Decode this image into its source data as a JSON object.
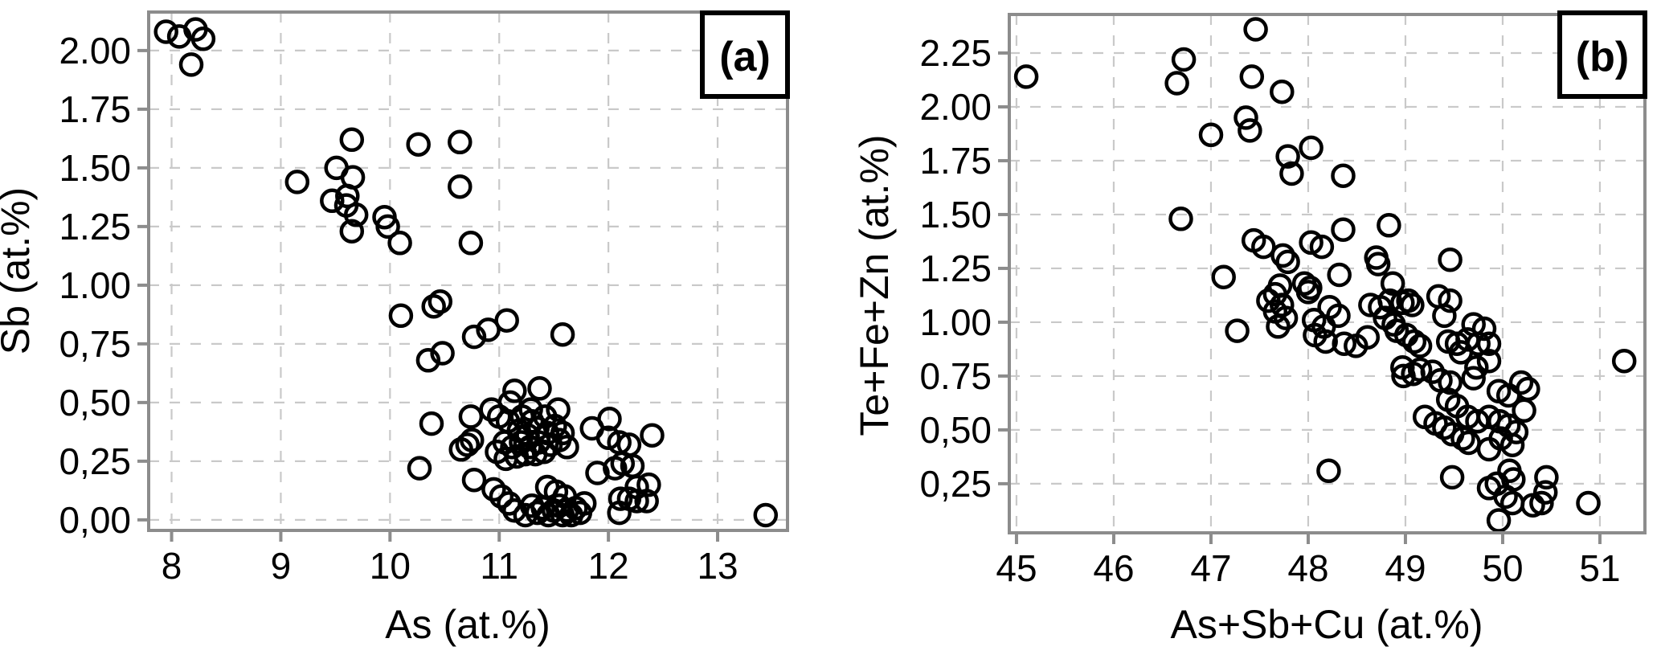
{
  "figure": {
    "background": "#ffffff",
    "axis_color": "#8c8c8c",
    "grid_color": "#c9c9c9",
    "text_color": "#000000",
    "marker": {
      "shape": "open-circle",
      "stroke": "#000000",
      "fill": "none"
    }
  },
  "chart_data": [
    {
      "type": "scatter",
      "panel_label": "(a)",
      "xlabel": "As (at.%)",
      "ylabel": "Sb (at.%)",
      "xlim": [
        7.79,
        13.64
      ],
      "ylim": [
        -0.045,
        2.164
      ],
      "grid": "dashed",
      "legend": "none",
      "xticks": {
        "values": [
          8,
          9,
          10,
          11,
          12,
          13
        ],
        "labels": [
          "8",
          "9",
          "10",
          "11",
          "12",
          "13"
        ]
      },
      "yticks": {
        "values": [
          0,
          0.25,
          0.5,
          0.75,
          1,
          1.25,
          1.5,
          1.75,
          2
        ],
        "labels": [
          "0,00",
          "0,25",
          "0,50",
          "0,75",
          "1.00",
          "1.25",
          "1.50",
          "1.75",
          "2.00"
        ]
      },
      "points": [
        [
          7.95,
          2.08
        ],
        [
          8.07,
          2.06
        ],
        [
          8.22,
          2.09
        ],
        [
          8.29,
          2.05
        ],
        [
          8.18,
          1.94
        ],
        [
          9.65,
          1.62
        ],
        [
          10.26,
          1.6
        ],
        [
          10.64,
          1.61
        ],
        [
          9.51,
          1.5
        ],
        [
          9.15,
          1.44
        ],
        [
          9.66,
          1.46
        ],
        [
          10.64,
          1.42
        ],
        [
          9.61,
          1.38
        ],
        [
          9.47,
          1.36
        ],
        [
          9.6,
          1.34
        ],
        [
          9.69,
          1.3
        ],
        [
          9.95,
          1.29
        ],
        [
          9.98,
          1.25
        ],
        [
          9.65,
          1.23
        ],
        [
          10.09,
          1.18
        ],
        [
          10.74,
          1.18
        ],
        [
          10.1,
          0.87
        ],
        [
          10.4,
          0.91
        ],
        [
          10.46,
          0.93
        ],
        [
          10.35,
          0.68
        ],
        [
          10.48,
          0.71
        ],
        [
          10.77,
          0.78
        ],
        [
          10.9,
          0.81
        ],
        [
          11.07,
          0.85
        ],
        [
          11.58,
          0.79
        ],
        [
          10.38,
          0.41
        ],
        [
          10.27,
          0.22
        ],
        [
          10.77,
          0.17
        ],
        [
          10.93,
          0.47
        ],
        [
          10.74,
          0.44
        ],
        [
          11.1,
          0.5
        ],
        [
          11.14,
          0.55
        ],
        [
          11.37,
          0.56
        ],
        [
          11.29,
          0.47
        ],
        [
          11.54,
          0.47
        ],
        [
          11.0,
          0.44
        ],
        [
          11.08,
          0.42
        ],
        [
          11.21,
          0.44
        ],
        [
          11.3,
          0.42
        ],
        [
          11.42,
          0.44
        ],
        [
          11.18,
          0.38
        ],
        [
          11.26,
          0.36
        ],
        [
          11.35,
          0.39
        ],
        [
          11.44,
          0.37
        ],
        [
          11.51,
          0.4
        ],
        [
          11.58,
          0.37
        ],
        [
          11.05,
          0.33
        ],
        [
          11.12,
          0.31
        ],
        [
          11.2,
          0.33
        ],
        [
          11.28,
          0.31
        ],
        [
          11.36,
          0.33
        ],
        [
          11.47,
          0.32
        ],
        [
          11.55,
          0.34
        ],
        [
          10.98,
          0.29
        ],
        [
          11.06,
          0.26
        ],
        [
          11.16,
          0.27
        ],
        [
          11.24,
          0.28
        ],
        [
          11.33,
          0.28
        ],
        [
          11.41,
          0.29
        ],
        [
          11.62,
          0.31
        ],
        [
          10.65,
          0.3
        ],
        [
          10.71,
          0.32
        ],
        [
          10.75,
          0.34
        ],
        [
          12.01,
          0.43
        ],
        [
          11.85,
          0.39
        ],
        [
          12.0,
          0.35
        ],
        [
          12.1,
          0.33
        ],
        [
          12.19,
          0.32
        ],
        [
          12.4,
          0.36
        ],
        [
          11.9,
          0.2
        ],
        [
          12.06,
          0.22
        ],
        [
          12.13,
          0.24
        ],
        [
          12.22,
          0.23
        ],
        [
          12.26,
          0.14
        ],
        [
          12.37,
          0.15
        ],
        [
          12.11,
          0.09
        ],
        [
          12.19,
          0.09
        ],
        [
          12.26,
          0.08
        ],
        [
          12.35,
          0.08
        ],
        [
          12.1,
          0.03
        ],
        [
          10.95,
          0.13
        ],
        [
          11.02,
          0.1
        ],
        [
          11.09,
          0.07
        ],
        [
          11.14,
          0.04
        ],
        [
          11.24,
          0.02
        ],
        [
          11.3,
          0.06
        ],
        [
          11.35,
          0.03
        ],
        [
          11.4,
          0.05
        ],
        [
          11.45,
          0.02
        ],
        [
          11.5,
          0.04
        ],
        [
          11.55,
          0.06
        ],
        [
          11.58,
          0.02
        ],
        [
          11.62,
          0.04
        ],
        [
          11.66,
          0.02
        ],
        [
          11.7,
          0.05
        ],
        [
          11.74,
          0.03
        ],
        [
          11.78,
          0.07
        ],
        [
          11.6,
          0.1
        ],
        [
          11.52,
          0.12
        ],
        [
          11.44,
          0.14
        ],
        [
          13.44,
          0.02
        ]
      ]
    },
    {
      "type": "scatter",
      "panel_label": "(b)",
      "xlabel": "As+Sb+Cu (at.%)",
      "ylabel": "Te+Fe+Zn (at.%)",
      "xlim": [
        44.926,
        51.463
      ],
      "ylim": [
        0.022,
        2.429
      ],
      "grid": "dashed",
      "legend": "none",
      "xticks": {
        "values": [
          45,
          46,
          47,
          48,
          49,
          50,
          51
        ],
        "labels": [
          "45",
          "46",
          "47",
          "48",
          "49",
          "50",
          "51"
        ]
      },
      "yticks": {
        "values": [
          0.25,
          0.5,
          0.75,
          1,
          1.25,
          1.5,
          1.75,
          2,
          2.25
        ],
        "labels": [
          "0,25",
          "0,50",
          "0.75",
          "1.00",
          "1.25",
          "1.50",
          "1.75",
          "2.00",
          "2.25"
        ]
      },
      "points": [
        [
          45.1,
          2.14
        ],
        [
          46.72,
          2.22
        ],
        [
          46.65,
          2.11
        ],
        [
          47.46,
          2.36
        ],
        [
          47.42,
          2.14
        ],
        [
          47.73,
          2.07
        ],
        [
          47.0,
          1.87
        ],
        [
          47.36,
          1.95
        ],
        [
          47.4,
          1.89
        ],
        [
          47.79,
          1.77
        ],
        [
          48.03,
          1.81
        ],
        [
          47.83,
          1.69
        ],
        [
          48.36,
          1.68
        ],
        [
          46.69,
          1.48
        ],
        [
          47.44,
          1.38
        ],
        [
          47.54,
          1.35
        ],
        [
          47.74,
          1.31
        ],
        [
          47.79,
          1.28
        ],
        [
          48.03,
          1.37
        ],
        [
          48.14,
          1.35
        ],
        [
          48.36,
          1.43
        ],
        [
          48.83,
          1.45
        ],
        [
          47.13,
          1.21
        ],
        [
          47.71,
          1.17
        ],
        [
          47.96,
          1.18
        ],
        [
          48.7,
          1.3
        ],
        [
          48.72,
          1.27
        ],
        [
          48.32,
          1.22
        ],
        [
          48.02,
          1.16
        ],
        [
          49.46,
          1.29
        ],
        [
          48.87,
          1.18
        ],
        [
          47.59,
          1.1
        ],
        [
          47.66,
          1.13
        ],
        [
          47.73,
          1.08
        ],
        [
          47.66,
          1.05
        ],
        [
          47.69,
          0.98
        ],
        [
          47.77,
          1.02
        ],
        [
          48.0,
          1.14
        ],
        [
          47.27,
          0.96
        ],
        [
          48.22,
          1.07
        ],
        [
          48.31,
          1.03
        ],
        [
          48.06,
          1.01
        ],
        [
          48.16,
          0.98
        ],
        [
          48.64,
          1.08
        ],
        [
          48.74,
          1.07
        ],
        [
          48.84,
          1.1
        ],
        [
          48.97,
          1.09
        ],
        [
          49.03,
          1.1
        ],
        [
          49.07,
          1.08
        ],
        [
          48.79,
          1.02
        ],
        [
          48.88,
          0.99
        ],
        [
          49.34,
          1.12
        ],
        [
          49.46,
          1.1
        ],
        [
          49.4,
          1.03
        ],
        [
          49.7,
          0.99
        ],
        [
          49.81,
          0.97
        ],
        [
          48.07,
          0.94
        ],
        [
          48.18,
          0.91
        ],
        [
          48.37,
          0.9
        ],
        [
          48.49,
          0.89
        ],
        [
          48.61,
          0.93
        ],
        [
          48.91,
          0.96
        ],
        [
          49.01,
          0.94
        ],
        [
          49.09,
          0.91
        ],
        [
          49.15,
          0.89
        ],
        [
          49.44,
          0.91
        ],
        [
          49.53,
          0.9
        ],
        [
          49.64,
          0.92
        ],
        [
          49.75,
          0.9
        ],
        [
          49.86,
          0.9
        ],
        [
          48.98,
          0.75
        ],
        [
          48.97,
          0.79
        ],
        [
          49.08,
          0.76
        ],
        [
          49.15,
          0.78
        ],
        [
          49.28,
          0.77
        ],
        [
          49.36,
          0.73
        ],
        [
          49.46,
          0.72
        ],
        [
          49.7,
          0.74
        ],
        [
          49.86,
          0.82
        ],
        [
          49.57,
          0.86
        ],
        [
          49.73,
          0.79
        ],
        [
          49.96,
          0.68
        ],
        [
          50.06,
          0.66
        ],
        [
          50.19,
          0.72
        ],
        [
          50.26,
          0.69
        ],
        [
          49.44,
          0.64
        ],
        [
          49.53,
          0.61
        ],
        [
          51.25,
          0.82
        ],
        [
          49.64,
          0.56
        ],
        [
          49.74,
          0.54
        ],
        [
          49.2,
          0.56
        ],
        [
          49.31,
          0.53
        ],
        [
          49.4,
          0.51
        ],
        [
          49.48,
          0.48
        ],
        [
          49.59,
          0.46
        ],
        [
          49.65,
          0.44
        ],
        [
          49.86,
          0.56
        ],
        [
          49.97,
          0.54
        ],
        [
          50.06,
          0.52
        ],
        [
          50.14,
          0.49
        ],
        [
          49.98,
          0.46
        ],
        [
          50.1,
          0.43
        ],
        [
          49.86,
          0.41
        ],
        [
          50.22,
          0.59
        ],
        [
          48.21,
          0.31
        ],
        [
          49.48,
          0.28
        ],
        [
          50.07,
          0.31
        ],
        [
          50.11,
          0.27
        ],
        [
          49.94,
          0.25
        ],
        [
          49.86,
          0.23
        ],
        [
          50.45,
          0.28
        ],
        [
          50.44,
          0.21
        ],
        [
          50.03,
          0.19
        ],
        [
          50.1,
          0.16
        ],
        [
          50.31,
          0.15
        ],
        [
          50.4,
          0.16
        ],
        [
          50.88,
          0.16
        ],
        [
          49.96,
          0.08
        ]
      ]
    }
  ]
}
